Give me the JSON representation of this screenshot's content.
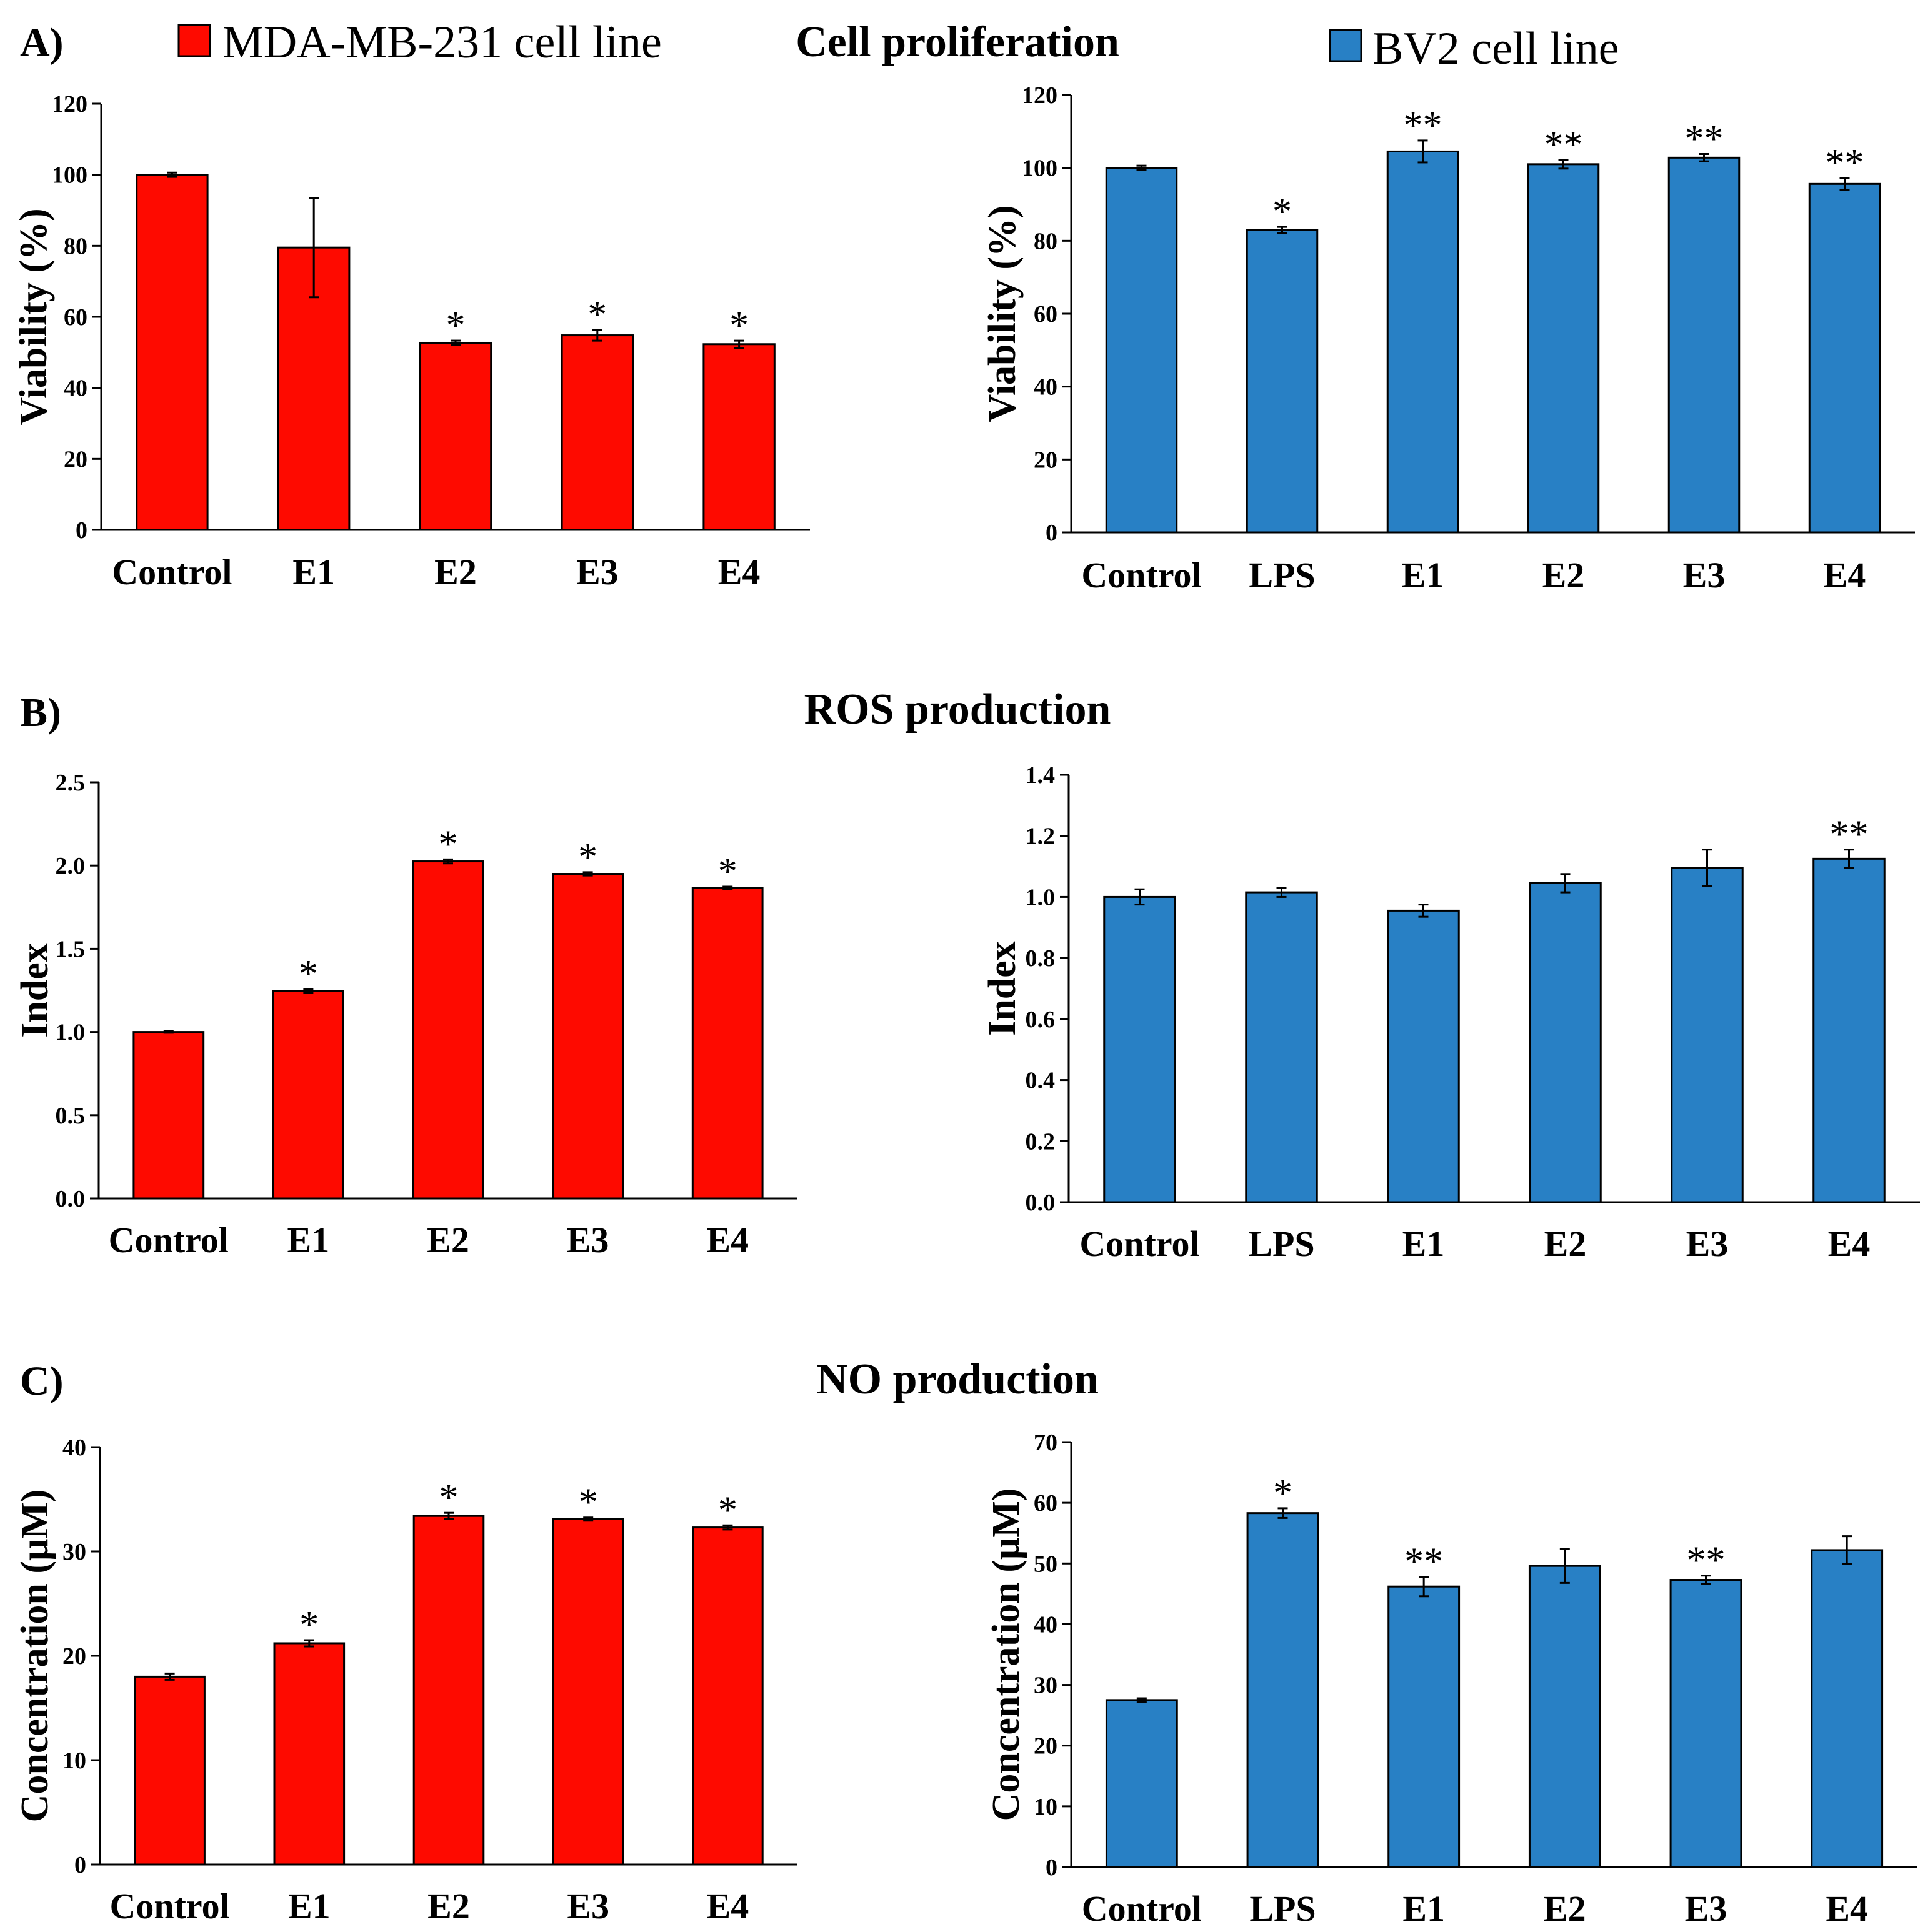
{
  "figure": {
    "panels": [
      {
        "label": "A)",
        "title": "Cell proliferation"
      },
      {
        "label": "B)",
        "title": "ROS production"
      },
      {
        "label": "C)",
        "title": "NO production"
      }
    ],
    "legend": [
      {
        "name": "MDA-MB-231 cell line",
        "color": "#fe0a00"
      },
      {
        "name": "BV2 cell line",
        "color": "#2880c5"
      }
    ]
  },
  "chart_data": [
    {
      "id": "A-MDA",
      "type": "bar",
      "title": "Cell proliferation",
      "series": "MDA-MB-231 cell line",
      "color": "#fe0a00",
      "ylabel": "Viability (%)",
      "ylim": [
        0,
        120
      ],
      "yticks": [
        "0",
        "20",
        "40",
        "60",
        "80",
        "100",
        "120"
      ],
      "categories": [
        "Control",
        "E1",
        "E2",
        "E3",
        "E4"
      ],
      "values": [
        100,
        79.5,
        52.7,
        54.8,
        52.3
      ],
      "errors": [
        0.6,
        14,
        0.6,
        1.5,
        1
      ],
      "significance": [
        "",
        "",
        "*",
        "*",
        "*"
      ]
    },
    {
      "id": "A-BV2",
      "type": "bar",
      "title": "Cell proliferation",
      "series": "BV2 cell line",
      "color": "#2880c5",
      "ylabel": "Viability (%)",
      "ylim": [
        0,
        120
      ],
      "yticks": [
        "0",
        "20",
        "40",
        "60",
        "80",
        "100",
        "120"
      ],
      "categories": [
        "Control",
        "LPS",
        "E1",
        "E2",
        "E3",
        "E4"
      ],
      "values": [
        100,
        83,
        104.5,
        101,
        102.8,
        95.6
      ],
      "errors": [
        0.6,
        0.8,
        3,
        1.2,
        1,
        1.6
      ],
      "significance": [
        "",
        "*",
        "**",
        "**",
        "**",
        "**"
      ]
    },
    {
      "id": "B-MDA",
      "type": "bar",
      "title": "ROS production",
      "series": "MDA-MB-231 cell line",
      "color": "#fe0a00",
      "ylabel": "Index",
      "ylim": [
        0,
        2.5
      ],
      "yticks": [
        "0.0",
        "0.5",
        "1.0",
        "1.5",
        "2.0",
        "2.5"
      ],
      "categories": [
        "Control",
        "E1",
        "E2",
        "E3",
        "E4"
      ],
      "values": [
        1.0,
        1.245,
        2.025,
        1.95,
        1.865
      ],
      "errors": [
        0.005,
        0.012,
        0.012,
        0.01,
        0.008
      ],
      "significance": [
        "",
        "*",
        "*",
        "*",
        "*"
      ]
    },
    {
      "id": "B-BV2",
      "type": "bar",
      "title": "ROS production",
      "series": "BV2 cell line",
      "color": "#2880c5",
      "ylabel": "Index",
      "ylim": [
        0,
        1.4
      ],
      "yticks": [
        "0.0",
        "0.2",
        "0.4",
        "0.6",
        "0.8",
        "1.0",
        "1.2",
        "1.4"
      ],
      "categories": [
        "Control",
        "LPS",
        "E1",
        "E2",
        "E3",
        "E4"
      ],
      "values": [
        1.0,
        1.015,
        0.955,
        1.045,
        1.095,
        1.125
      ],
      "errors": [
        0.025,
        0.015,
        0.02,
        0.03,
        0.06,
        0.03
      ],
      "significance": [
        "",
        "",
        "",
        "",
        "",
        "**"
      ]
    },
    {
      "id": "C-MDA",
      "type": "bar",
      "title": "NO production",
      "series": "MDA-MB-231 cell line",
      "color": "#fe0a00",
      "ylabel": "Concentration (μM)",
      "ylim": [
        0,
        40
      ],
      "yticks": [
        "0",
        "10",
        "20",
        "30",
        "40"
      ],
      "categories": [
        "Control",
        "E1",
        "E2",
        "E3",
        "E4"
      ],
      "values": [
        18,
        21.2,
        33.4,
        33.1,
        32.3
      ],
      "errors": [
        0.3,
        0.3,
        0.3,
        0.15,
        0.2
      ],
      "significance": [
        "",
        "*",
        "*",
        "*",
        "*"
      ]
    },
    {
      "id": "C-BV2",
      "type": "bar",
      "title": "NO production",
      "series": "BV2 cell line",
      "color": "#2880c5",
      "ylabel": "Concentration (μM)",
      "ylim": [
        0,
        70
      ],
      "yticks": [
        "0",
        "10",
        "20",
        "30",
        "40",
        "50",
        "60",
        "70"
      ],
      "categories": [
        "Control",
        "LPS",
        "E1",
        "E2",
        "E3",
        "E4"
      ],
      "values": [
        27.5,
        58.3,
        46.2,
        49.6,
        47.3,
        52.2
      ],
      "errors": [
        0.3,
        0.8,
        1.6,
        2.8,
        0.7,
        2.3
      ],
      "significance": [
        "",
        "*",
        "**",
        "",
        "**",
        ""
      ]
    }
  ]
}
